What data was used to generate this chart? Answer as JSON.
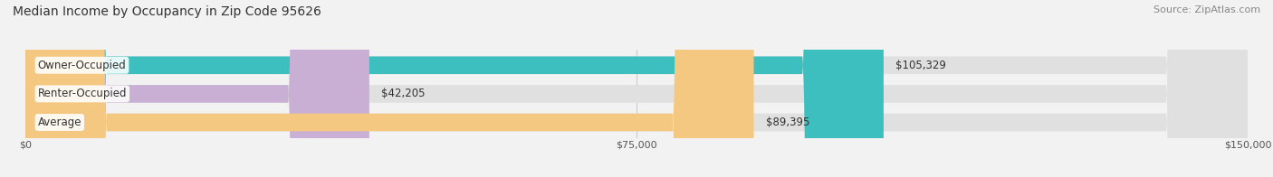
{
  "title": "Median Income by Occupancy in Zip Code 95626",
  "source": "Source: ZipAtlas.com",
  "categories": [
    "Owner-Occupied",
    "Renter-Occupied",
    "Average"
  ],
  "values": [
    105329,
    42205,
    89395
  ],
  "bar_colors": [
    "#3dbfbf",
    "#c9afd4",
    "#f5c882"
  ],
  "value_labels": [
    "$105,329",
    "$42,205",
    "$89,395"
  ],
  "x_ticks": [
    0,
    75000,
    150000
  ],
  "x_tick_labels": [
    "$0",
    "$75,000",
    "$150,000"
  ],
  "xlim": [
    0,
    150000
  ],
  "background_color": "#f2f2f2",
  "bar_bg_color": "#e0e0e0",
  "title_fontsize": 10,
  "source_fontsize": 8,
  "label_fontsize": 8.5,
  "value_fontsize": 8.5
}
